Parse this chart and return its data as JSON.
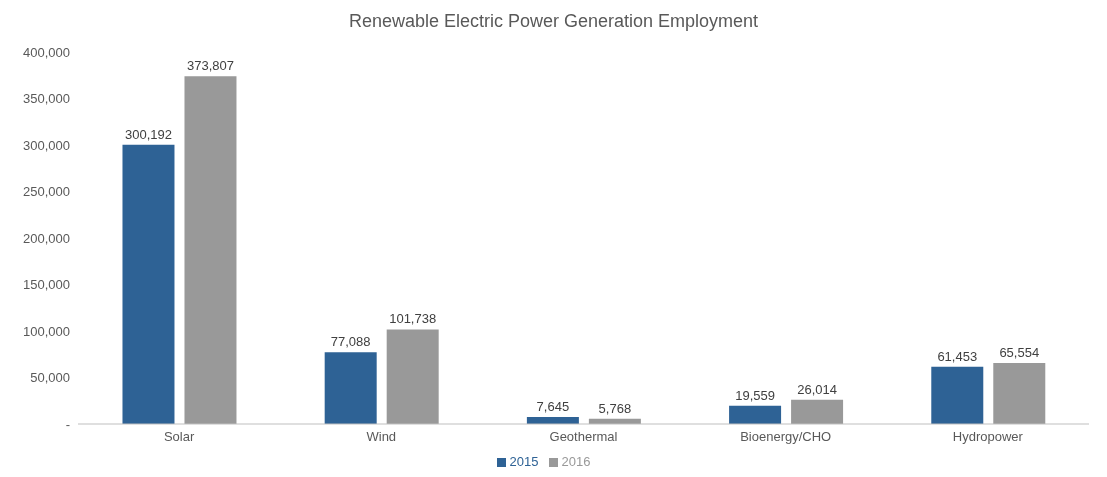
{
  "chart_data": {
    "type": "bar",
    "title": "Renewable Electric Power Generation Employment",
    "categories": [
      "Solar",
      "Wind",
      "Geothermal",
      "Bioenergy/CHO",
      "Hydropower"
    ],
    "series": [
      {
        "name": "2015",
        "color": "#2e6295",
        "values": [
          300192,
          77088,
          7645,
          19559,
          61453
        ],
        "value_labels": [
          "300,192",
          "77,088",
          "7,645",
          "19,559",
          "61,453"
        ]
      },
      {
        "name": "2016",
        "color": "#999999",
        "values": [
          373807,
          101738,
          5768,
          26014,
          65554
        ],
        "value_labels": [
          "373,807",
          "101,738",
          "5,768",
          "26,014",
          "65,554"
        ]
      }
    ],
    "ylim": [
      0,
      400000
    ],
    "yticks": [
      {
        "value": 0,
        "label": "-"
      },
      {
        "value": 50000,
        "label": "50,000"
      },
      {
        "value": 100000,
        "label": "100,000"
      },
      {
        "value": 150000,
        "label": "150,000"
      },
      {
        "value": 200000,
        "label": "200,000"
      },
      {
        "value": 250000,
        "label": "250,000"
      },
      {
        "value": 300000,
        "label": "300,000"
      },
      {
        "value": 350000,
        "label": "350,000"
      },
      {
        "value": 400000,
        "label": "400,000"
      }
    ],
    "legend": "bottom"
  }
}
